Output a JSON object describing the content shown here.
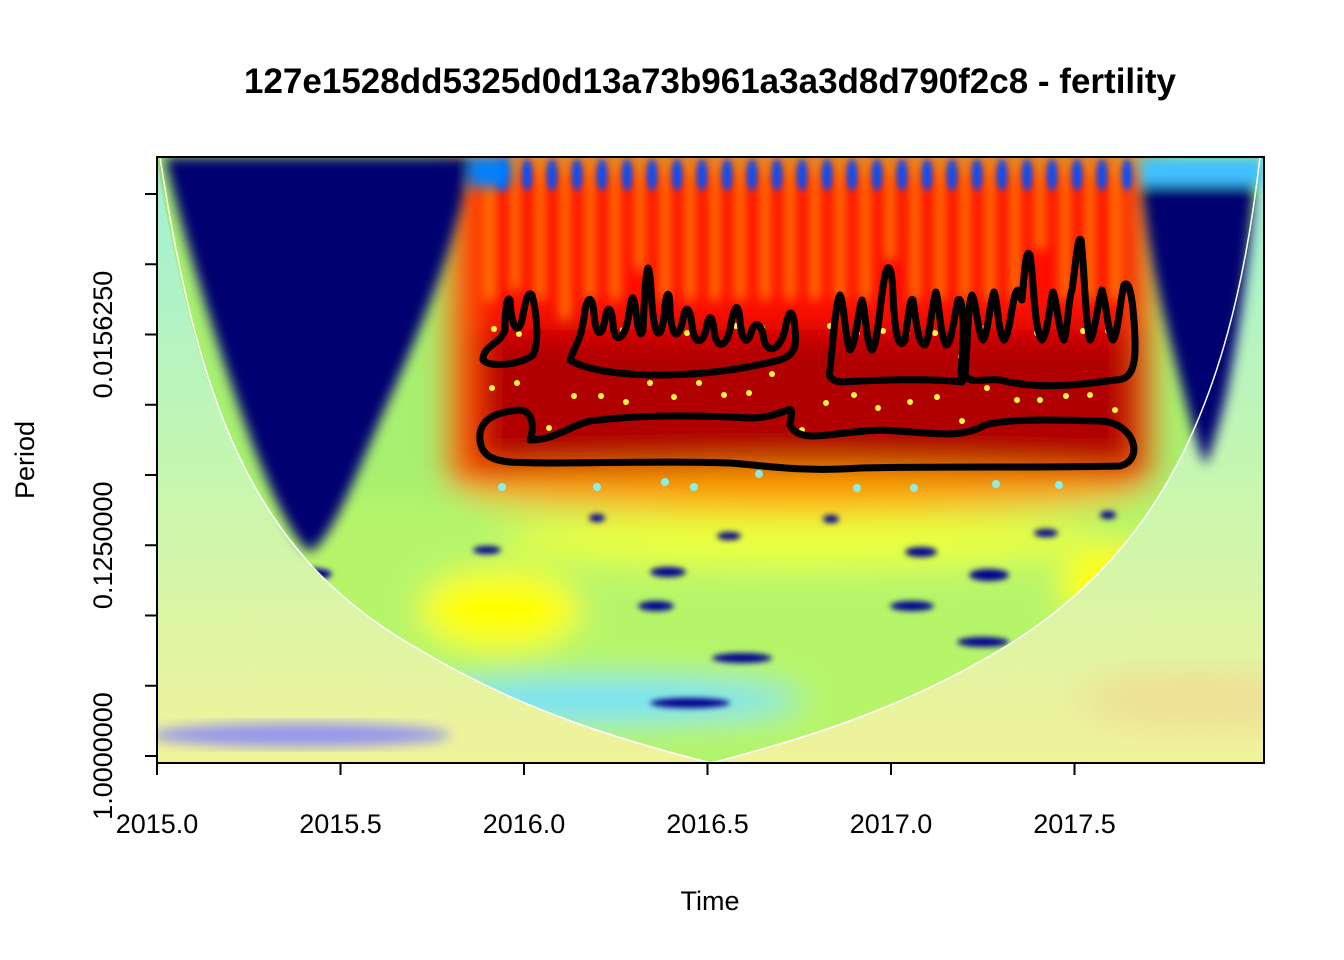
{
  "chart_data": {
    "type": "heatmap",
    "title": "127e1528dd5325d0d13a73b961a3a3d8d790f2c8 - fertility",
    "xlabel": "Time",
    "ylabel": "Period",
    "x_ticks": [
      "2015.0",
      "2015.5",
      "2016.0",
      "2016.5",
      "2017.0",
      "2017.5"
    ],
    "x_tick_values": [
      2015.0,
      2015.5,
      2016.0,
      2016.5,
      2017.0,
      2017.5
    ],
    "xlim": [
      2015.0,
      2018.0
    ],
    "y_scale": "log2",
    "y_ticks": [
      "0.0156250",
      "0.1250000",
      "1.0000000"
    ],
    "y_tick_values": [
      0.015625,
      0.125,
      1.0
    ],
    "ylim": [
      1.0,
      0.00390625
    ],
    "y_reversed": true,
    "colormap": [
      "#000080",
      "#0000ff",
      "#00ffff",
      "#ffff00",
      "#ff0000",
      "#800000"
    ],
    "grid": false,
    "legend": "none",
    "cone_of_influence": true,
    "significance_contours": true
  }
}
